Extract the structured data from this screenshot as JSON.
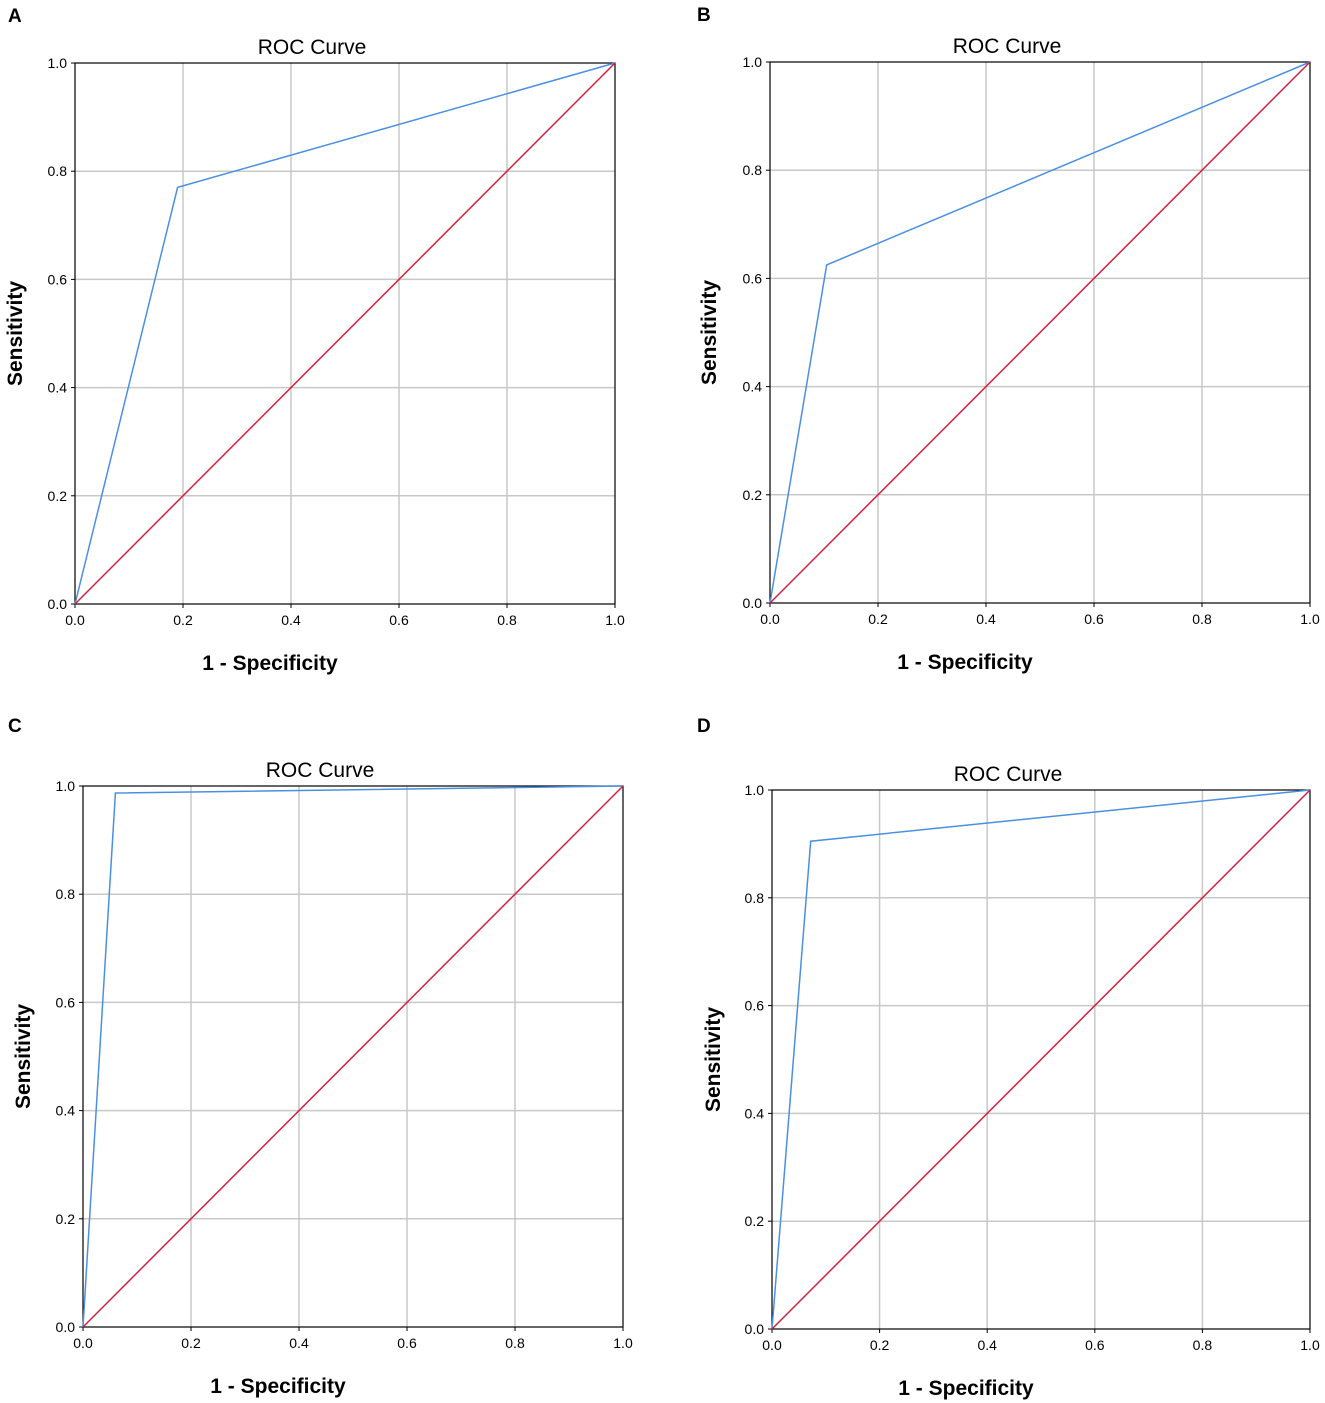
{
  "figure": {
    "panel_labels": [
      "A",
      "B",
      "C",
      "D"
    ]
  },
  "colors": {
    "roc_curve": "#4a90e2",
    "reference_line": "#d4213d",
    "grid": "#c8c8c8",
    "axes": "#000000"
  },
  "chart_data": [
    {
      "panel": "A",
      "type": "line",
      "title": "ROC Curve",
      "xlabel": "1 - Specificity",
      "ylabel": "Sensitivity",
      "xlim": [
        0,
        1
      ],
      "ylim": [
        0,
        1
      ],
      "x_ticks": [
        "0.0",
        "0.2",
        "0.4",
        "0.6",
        "0.8",
        "1.0"
      ],
      "y_ticks": [
        "0.0",
        "0.2",
        "0.4",
        "0.6",
        "0.8",
        "1.0"
      ],
      "grid": true,
      "series": [
        {
          "name": "ROC curve",
          "x": [
            0.0,
            0.19,
            1.0
          ],
          "y": [
            0.0,
            0.77,
            1.0
          ]
        },
        {
          "name": "Reference line",
          "x": [
            0.0,
            1.0
          ],
          "y": [
            0.0,
            1.0
          ]
        }
      ]
    },
    {
      "panel": "B",
      "type": "line",
      "title": "ROC Curve",
      "xlabel": "1 - Specificity",
      "ylabel": "Sensitivity",
      "xlim": [
        0,
        1
      ],
      "ylim": [
        0,
        1
      ],
      "x_ticks": [
        "0.0",
        "0.2",
        "0.4",
        "0.6",
        "0.8",
        "1.0"
      ],
      "y_ticks": [
        "0.0",
        "0.2",
        "0.4",
        "0.6",
        "0.8",
        "1.0"
      ],
      "grid": true,
      "series": [
        {
          "name": "ROC curve",
          "x": [
            0.0,
            0.105,
            1.0
          ],
          "y": [
            0.0,
            0.625,
            1.0
          ]
        },
        {
          "name": "Reference line",
          "x": [
            0.0,
            1.0
          ],
          "y": [
            0.0,
            1.0
          ]
        }
      ]
    },
    {
      "panel": "C",
      "type": "line",
      "title": "ROC Curve",
      "xlabel": "1 - Specificity",
      "ylabel": "Sensitivity",
      "xlim": [
        0,
        1
      ],
      "ylim": [
        0,
        1
      ],
      "x_ticks": [
        "0.0",
        "0.2",
        "0.4",
        "0.6",
        "0.8",
        "1.0"
      ],
      "y_ticks": [
        "0.0",
        "0.2",
        "0.4",
        "0.6",
        "0.8",
        "1.0"
      ],
      "grid": true,
      "series": [
        {
          "name": "ROC curve",
          "x": [
            0.0,
            0.06,
            1.0
          ],
          "y": [
            0.0,
            0.987,
            1.0
          ]
        },
        {
          "name": "Reference line",
          "x": [
            0.0,
            1.0
          ],
          "y": [
            0.0,
            1.0
          ]
        }
      ]
    },
    {
      "panel": "D",
      "type": "line",
      "title": "ROC Curve",
      "xlabel": "1 - Specificity",
      "ylabel": "Sensitivity",
      "xlim": [
        0,
        1
      ],
      "ylim": [
        0,
        1
      ],
      "x_ticks": [
        "0.0",
        "0.2",
        "0.4",
        "0.6",
        "0.8",
        "1.0"
      ],
      "y_ticks": [
        "0.0",
        "0.2",
        "0.4",
        "0.6",
        "0.8",
        "1.0"
      ],
      "grid": true,
      "series": [
        {
          "name": "ROC curve",
          "x": [
            0.0,
            0.072,
            1.0
          ],
          "y": [
            0.0,
            0.905,
            1.0
          ]
        },
        {
          "name": "Reference line",
          "x": [
            0.0,
            1.0
          ],
          "y": [
            0.0,
            1.0
          ]
        }
      ]
    }
  ]
}
